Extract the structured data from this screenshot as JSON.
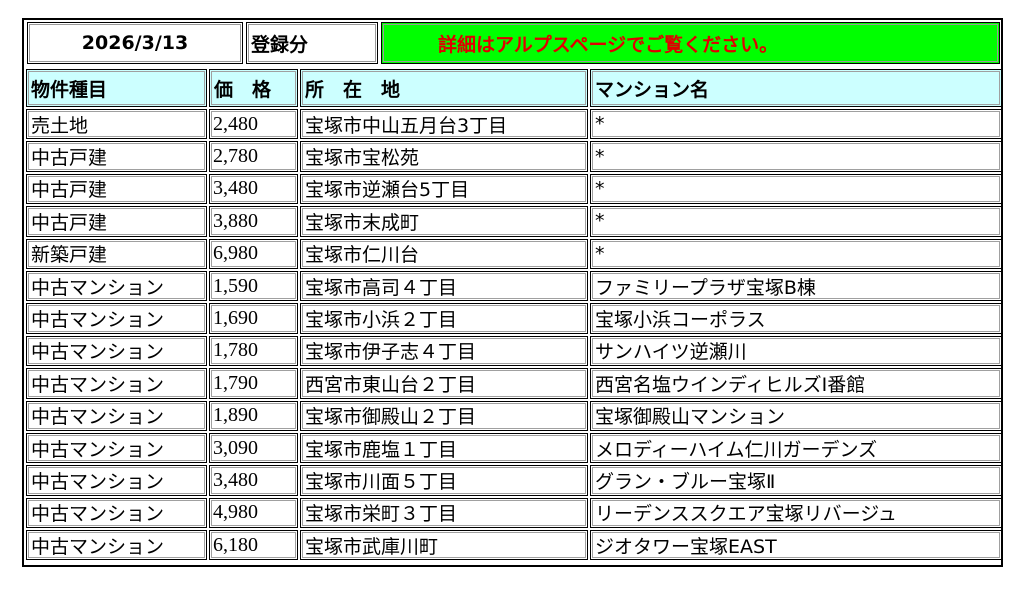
{
  "header": {
    "date": "2026/3/13",
    "registered_label": "登録分",
    "notice": "詳細はアルプスページでご覧ください。",
    "notice_bg_color": "#00ff00",
    "notice_text_color": "#e00000",
    "table_header_bg_color": "#ccffff"
  },
  "columns": [
    "物件種目",
    "価　格",
    "所　在　地",
    "マンション名"
  ],
  "rows": [
    {
      "type": "売土地",
      "price": "2,480",
      "location": "宝塚市中山五月台3丁目",
      "mansion": "*"
    },
    {
      "type": "中古戸建",
      "price": "2,780",
      "location": "宝塚市宝松苑",
      "mansion": "*"
    },
    {
      "type": "中古戸建",
      "price": "3,480",
      "location": "宝塚市逆瀬台5丁目",
      "mansion": "*"
    },
    {
      "type": "中古戸建",
      "price": "3,880",
      "location": "宝塚市末成町",
      "mansion": "*"
    },
    {
      "type": "新築戸建",
      "price": "6,980",
      "location": "宝塚市仁川台",
      "mansion": "*"
    },
    {
      "type": "中古マンション",
      "price": "1,590",
      "location": "宝塚市高司４丁目",
      "mansion": "ファミリープラザ宝塚B棟"
    },
    {
      "type": "中古マンション",
      "price": "1,690",
      "location": "宝塚市小浜２丁目",
      "mansion": "宝塚小浜コーポラス"
    },
    {
      "type": "中古マンション",
      "price": "1,780",
      "location": "宝塚市伊子志４丁目",
      "mansion": "サンハイツ逆瀬川"
    },
    {
      "type": "中古マンション",
      "price": "1,790",
      "location": "西宮市東山台２丁目",
      "mansion": "西宮名塩ウインディヒルズⅠ番館"
    },
    {
      "type": "中古マンション",
      "price": "1,890",
      "location": "宝塚市御殿山２丁目",
      "mansion": "宝塚御殿山マンション"
    },
    {
      "type": "中古マンション",
      "price": "3,090",
      "location": "宝塚市鹿塩１丁目",
      "mansion": "メロディーハイム仁川ガーデンズ"
    },
    {
      "type": "中古マンション",
      "price": "3,480",
      "location": "宝塚市川面５丁目",
      "mansion": "グラン・ブルー宝塚Ⅱ"
    },
    {
      "type": "中古マンション",
      "price": "4,980",
      "location": "宝塚市栄町３丁目",
      "mansion": "リーデンススクエア宝塚リバージュ"
    },
    {
      "type": "中古マンション",
      "price": "6,180",
      "location": "宝塚市武庫川町",
      "mansion": "ジオタワー宝塚EAST"
    }
  ]
}
